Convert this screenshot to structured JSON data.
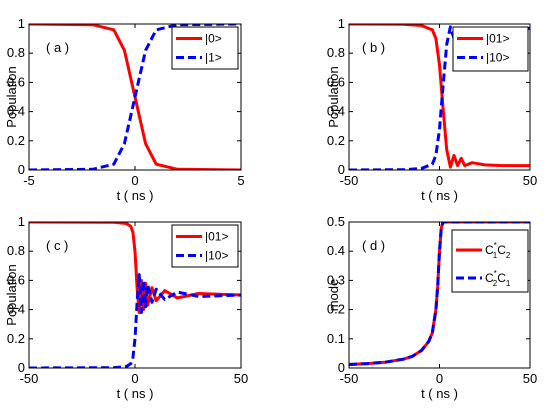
{
  "chart_data": [
    {
      "type": "line",
      "panel_label": "( a )",
      "xlabel": "t ( ns )",
      "ylabel": "Population",
      "xlim": [
        -5,
        5
      ],
      "ylim": [
        0,
        1
      ],
      "xticks": [
        "-5",
        "0",
        "5"
      ],
      "yticks": [
        "0",
        "0.2",
        "0.4",
        "0.6",
        "0.8",
        "1"
      ],
      "legend_position": "top-right",
      "series": [
        {
          "name": "|0>",
          "color": "#ff0000",
          "style": "solid",
          "x": [
            -5,
            -2,
            -1,
            -0.5,
            0,
            0.5,
            1,
            2,
            5
          ],
          "y": [
            1,
            0.995,
            0.96,
            0.82,
            0.5,
            0.18,
            0.04,
            0.005,
            0
          ]
        },
        {
          "name": "|1>",
          "color": "#0000ff",
          "style": "dashed",
          "x": [
            -5,
            -2,
            -1,
            -0.5,
            0,
            0.5,
            1,
            2,
            5
          ],
          "y": [
            0,
            0.005,
            0.04,
            0.18,
            0.5,
            0.82,
            0.96,
            0.995,
            1
          ]
        }
      ]
    },
    {
      "type": "line",
      "panel_label": "( b )",
      "xlabel": "t ( ns )",
      "ylabel": "Population",
      "xlim": [
        -50,
        50
      ],
      "ylim": [
        0,
        1
      ],
      "xticks": [
        "-50",
        "0",
        "50"
      ],
      "yticks": [
        "0",
        "0.2",
        "0.4",
        "0.6",
        "0.8",
        "1"
      ],
      "legend_position": "top-right",
      "series": [
        {
          "name": "|01>",
          "color": "#ff0000",
          "style": "solid",
          "x": [
            -50,
            -20,
            -10,
            -6,
            -4,
            -2,
            0,
            2,
            4,
            6,
            8,
            10,
            12,
            14,
            18,
            25,
            35,
            50
          ],
          "y": [
            1,
            0.998,
            0.99,
            0.97,
            0.96,
            0.9,
            0.72,
            0.42,
            0.14,
            0.02,
            0.1,
            0.03,
            0.08,
            0.03,
            0.05,
            0.035,
            0.03,
            0.03
          ]
        },
        {
          "name": "|10>",
          "color": "#0000ff",
          "style": "dashed",
          "x": [
            -50,
            -20,
            -10,
            -6,
            -4,
            -2,
            0,
            2,
            4,
            6,
            8,
            10,
            12,
            14,
            18,
            25,
            35,
            50
          ],
          "y": [
            0,
            0.002,
            0.01,
            0.03,
            0.04,
            0.1,
            0.28,
            0.58,
            0.86,
            0.98,
            0.9,
            0.97,
            0.92,
            0.97,
            0.95,
            0.965,
            0.97,
            0.97
          ]
        }
      ]
    },
    {
      "type": "line",
      "panel_label": "( c )",
      "xlabel": "t ( ns )",
      "ylabel": "Population",
      "xlim": [
        -50,
        50
      ],
      "ylim": [
        0,
        1
      ],
      "xticks": [
        "-50",
        "0",
        "50"
      ],
      "yticks": [
        "0",
        "0.2",
        "0.4",
        "0.6",
        "0.8",
        "1"
      ],
      "legend_position": "top-right",
      "series": [
        {
          "name": "|01>",
          "color": "#ff0000",
          "style": "solid",
          "x": [
            -50,
            -10,
            -4,
            -2,
            -1,
            0,
            1,
            2,
            3,
            4,
            5,
            6,
            8,
            10,
            14,
            20,
            30,
            50
          ],
          "y": [
            1,
            0.998,
            0.99,
            0.97,
            0.93,
            0.8,
            0.55,
            0.38,
            0.6,
            0.4,
            0.58,
            0.43,
            0.55,
            0.46,
            0.53,
            0.48,
            0.51,
            0.5
          ]
        },
        {
          "name": "|10>",
          "color": "#0000ff",
          "style": "dashed",
          "x": [
            -50,
            -10,
            -4,
            -2,
            -1,
            0,
            1,
            2,
            3,
            4,
            5,
            6,
            8,
            10,
            14,
            20,
            30,
            50
          ],
          "y": [
            0,
            0.002,
            0.01,
            0.03,
            0.07,
            0.2,
            0.45,
            0.64,
            0.38,
            0.6,
            0.42,
            0.57,
            0.45,
            0.54,
            0.47,
            0.52,
            0.49,
            0.5
          ]
        }
      ]
    },
    {
      "type": "line",
      "panel_label": "( d )",
      "xlabel": "t ( ns )",
      "ylabel": "mode",
      "xlim": [
        -50,
        50
      ],
      "ylim": [
        0,
        0.5
      ],
      "xticks": [
        "-50",
        "0",
        "50"
      ],
      "yticks": [
        "0",
        "0.1",
        "0.2",
        "0.3",
        "0.4",
        "0.5"
      ],
      "legend_position": "top-right",
      "series": [
        {
          "name": "C1*C2",
          "color": "#ff0000",
          "style": "solid",
          "x": [
            -50,
            -40,
            -30,
            -20,
            -15,
            -10,
            -6,
            -4,
            -2,
            -1,
            0,
            1,
            2,
            5,
            20,
            50
          ],
          "y": [
            0.012,
            0.015,
            0.02,
            0.03,
            0.04,
            0.06,
            0.09,
            0.12,
            0.2,
            0.28,
            0.4,
            0.48,
            0.5,
            0.5,
            0.5,
            0.5
          ]
        },
        {
          "name": "C2*C1",
          "color": "#0000ff",
          "style": "dashed",
          "x": [
            -50,
            -40,
            -30,
            -20,
            -15,
            -10,
            -6,
            -4,
            -2,
            -1,
            0,
            1,
            2,
            5,
            20,
            50
          ],
          "y": [
            0.012,
            0.015,
            0.02,
            0.03,
            0.04,
            0.06,
            0.09,
            0.12,
            0.2,
            0.28,
            0.4,
            0.48,
            0.5,
            0.5,
            0.5,
            0.5
          ]
        }
      ]
    }
  ]
}
